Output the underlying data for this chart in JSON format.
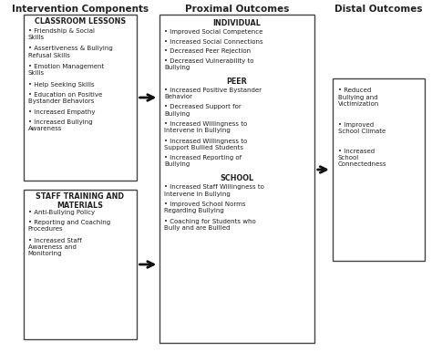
{
  "title_left": "Intervention Components",
  "title_mid": "Proximal Outcomes",
  "title_right": "Distal Outcomes",
  "box1_title": "CLASSROOM LESSONS",
  "box1_items": [
    "Friendship & Social\nSkills",
    "Assertiveness & Bullying\nRefusal Skills",
    "Emotion Management\nSkills",
    "Help Seeking Skills",
    "Education on Positive\nBystander Behaviors",
    "Increased Empathy",
    "Increased Bullying\nAwareness"
  ],
  "box2_title": "STAFF TRAINING AND\nMATERIALS",
  "box2_items": [
    "Anti-Bullying Policy",
    "Reporting and Coaching\nProcedures",
    "Increased Staff\nAwareness and\nMonitoring"
  ],
  "proximal_sections": [
    {
      "section": "INDIVIDUAL",
      "items": [
        "Improved Social Competence",
        "Increased Social Connections",
        "Decreased Peer Rejection",
        "Decreased Vulnerability to\nBullying"
      ]
    },
    {
      "section": "PEER",
      "items": [
        "Increased Positive Bystander\nBehavior",
        "Decreased Support for\nBullying",
        "Increased Willingness to\nIntervene in Bullying",
        "Increased Willingness to\nSupport Bullied Students",
        "Increased Reporting of\nBullying"
      ]
    },
    {
      "section": "SCHOOL",
      "items": [
        "Increased Staff Willingness to\nIntervene in Bullying",
        "Improved School Norms\nRegarding Bullying",
        "Coaching for Students who\nBully and are Bullied"
      ]
    }
  ],
  "distal_items": [
    "Reduced\nBullying and\nVictimization",
    "Improved\nSchool Climate",
    "Increased\nSchool\nConnectedness"
  ],
  "bg_color": "#ffffff",
  "box_color": "#ffffff",
  "border_color": "#444444",
  "text_color": "#222222",
  "arrow_color": "#111111"
}
